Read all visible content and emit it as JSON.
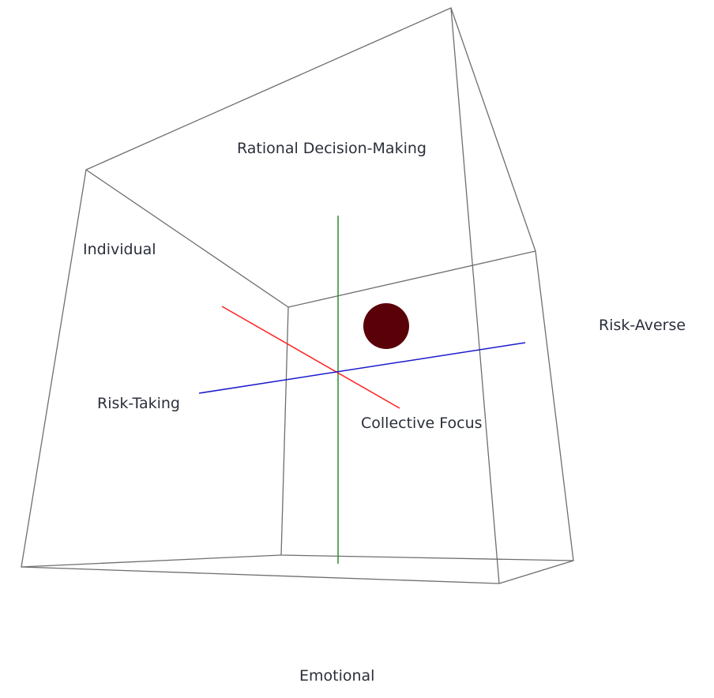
{
  "labels": {
    "rational": "Rational Decision-Making",
    "emotional": "Emotional",
    "individual": "Individual",
    "collective": "Collective Focus",
    "risk_taking": "Risk-Taking",
    "risk_averse": "Risk-Averse"
  },
  "colors": {
    "box_edges": "#6e6e6e",
    "axis_vertical": "#2e8b2e",
    "axis_depth": "#ff2020",
    "axis_horizontal": "#1a1acc",
    "point": "#5a0008"
  }
}
